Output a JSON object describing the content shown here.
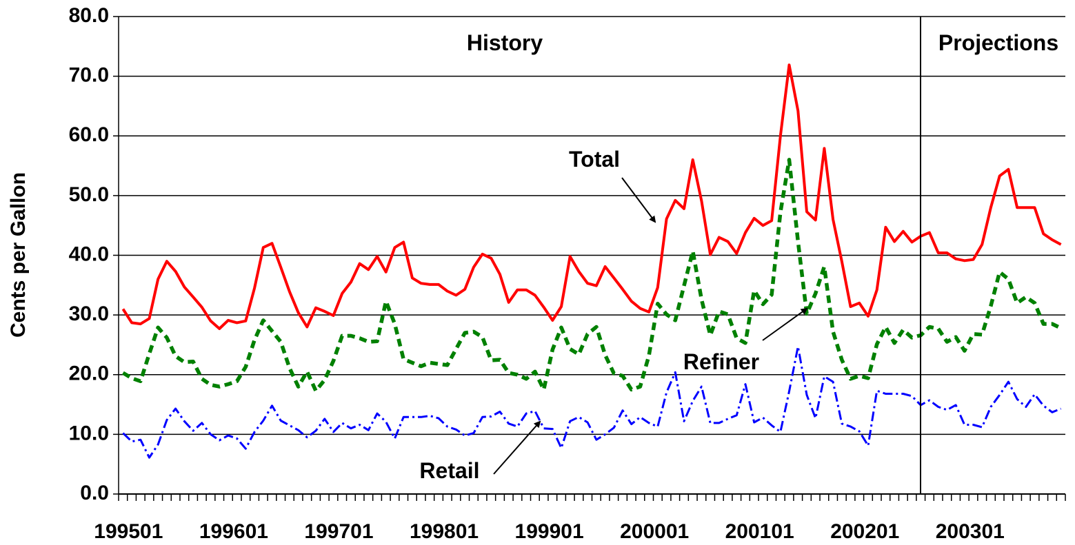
{
  "chart_data": {
    "type": "line",
    "y_label": "Cents per Gallon",
    "annotations": [
      "History",
      "Projections",
      "Total",
      "Refiner",
      "Retail"
    ],
    "categories": [
      "199501",
      null,
      null,
      null,
      null,
      null,
      null,
      null,
      null,
      null,
      null,
      null,
      "199601",
      null,
      null,
      null,
      null,
      null,
      null,
      null,
      null,
      null,
      null,
      null,
      "199701",
      null,
      null,
      null,
      null,
      null,
      null,
      null,
      null,
      null,
      null,
      null,
      "199801",
      null,
      null,
      null,
      null,
      null,
      null,
      null,
      null,
      null,
      null,
      null,
      "199901",
      null,
      null,
      null,
      null,
      null,
      null,
      null,
      null,
      null,
      null,
      null,
      "200001",
      null,
      null,
      null,
      null,
      null,
      null,
      null,
      null,
      null,
      null,
      null,
      "200101",
      null,
      null,
      null,
      null,
      null,
      null,
      null,
      null,
      null,
      null,
      null,
      "200201",
      null,
      null,
      null,
      null,
      null,
      null,
      null,
      null,
      null,
      null,
      null,
      "200301",
      null,
      null,
      null,
      null,
      null,
      null,
      null,
      null,
      null,
      null,
      null
    ],
    "series": [
      {
        "name": "Total",
        "color": "#ff0000",
        "values": [
          31,
          28.7,
          28.5,
          29.4,
          36,
          39,
          37.3,
          34.7,
          33,
          31.3,
          29,
          27.7,
          29.1,
          28.7,
          29,
          34.5,
          41.3,
          42,
          38,
          33.9,
          30.4,
          28,
          31.2,
          30.6,
          29.9,
          33.6,
          35.5,
          38.6,
          37.6,
          39.8,
          37.2,
          41.3,
          42.2,
          36.2,
          35.3,
          35.1,
          35.1,
          34,
          33.3,
          34.3,
          38,
          40.2,
          39.5,
          36.8,
          32.1,
          34.2,
          34.2,
          33.3,
          31.3,
          29.1,
          31.4,
          39.8,
          37.3,
          35.3,
          34.9,
          38.1,
          36.2,
          34.3,
          32.3,
          31.1,
          30.5,
          34.6,
          46.1,
          49.2,
          47.8,
          56,
          49.1,
          40.1,
          43,
          42.3,
          40.3,
          43.8,
          46.2,
          45,
          45.8,
          60,
          71.9,
          64.2,
          47.3,
          45.9,
          57.9,
          46,
          39,
          31.4,
          32,
          29.8,
          34.2,
          44.7,
          42.3,
          44,
          42.2,
          43.2,
          43.8,
          40.4,
          40.4,
          39.4,
          39.1,
          39.3,
          41.8,
          48,
          53.3,
          54.4,
          48,
          48,
          48,
          43.6,
          42.6,
          41.8
        ]
      },
      {
        "name": "Refiner",
        "color": "#008000",
        "values": [
          20.3,
          19.4,
          18.9,
          23.5,
          27.9,
          26.2,
          23.1,
          22.1,
          22.2,
          19.3,
          18.3,
          18,
          18.4,
          18.9,
          21.3,
          25.8,
          29.1,
          27.3,
          25.5,
          21.1,
          18,
          20.5,
          17.3,
          19.1,
          22.3,
          26.5,
          26.5,
          26.1,
          25.5,
          25.6,
          32.3,
          28.5,
          22.6,
          22,
          21.4,
          22,
          21.8,
          21.6,
          24.3,
          27,
          27.2,
          26.3,
          22.4,
          22.5,
          20.3,
          20,
          19.3,
          20.5,
          17.5,
          24.2,
          27.9,
          24.3,
          23.4,
          26.8,
          28,
          23.3,
          20.2,
          19.8,
          17.5,
          18,
          23.2,
          31.9,
          30.1,
          29.1,
          34.9,
          40.7,
          32.6,
          26.6,
          30.6,
          30.1,
          26.1,
          25.3,
          34.1,
          31.8,
          33.4,
          47.2,
          56,
          42.3,
          30.2,
          33.6,
          38.1,
          27.2,
          22.5,
          19.3,
          19.8,
          19.4,
          25.1,
          28,
          25.3,
          27.5,
          26.2,
          26.6,
          28,
          27.7,
          25.5,
          26.3,
          24,
          26.8,
          26.7,
          31.5,
          37.2,
          36,
          32,
          33,
          32,
          28.5,
          28.5,
          27.8
        ]
      },
      {
        "name": "Retail",
        "color": "#0000ff",
        "values": [
          10.2,
          8.8,
          9.1,
          6.1,
          8.3,
          12.4,
          14.3,
          12.2,
          10.6,
          11.9,
          10,
          9,
          9.8,
          9.3,
          7.6,
          10.4,
          12.3,
          14.8,
          12.3,
          11.5,
          10.7,
          9.5,
          10.6,
          12.6,
          10.4,
          11.9,
          11,
          11.6,
          10.7,
          13.5,
          12.1,
          9.3,
          12.9,
          12.9,
          12.9,
          13.1,
          12.7,
          11.3,
          10.8,
          9.8,
          10.2,
          12.9,
          13,
          13.8,
          11.8,
          11.3,
          13.5,
          13.9,
          11,
          10.9,
          7.7,
          12.2,
          12.9,
          12,
          9.1,
          10,
          11.1,
          14,
          11.7,
          12.9,
          11.9,
          11.3,
          17,
          20.4,
          12.2,
          15.6,
          18,
          11.9,
          11.9,
          12.6,
          13.2,
          18.4,
          12,
          12.8,
          11.5,
          10.4,
          17.2,
          24.7,
          16.6,
          12.7,
          19.7,
          18.8,
          11.8,
          11.3,
          10.5,
          8.1,
          17.3,
          16.8,
          16.8,
          16.8,
          16.4,
          14.9,
          15.7,
          14.6,
          14.1,
          14.9,
          11.6,
          11.6,
          11.2,
          14.6,
          16.6,
          18.8,
          15.9,
          14.6,
          16.7,
          14.8,
          13.7,
          14.3
        ]
      }
    ],
    "ylim": [
      0,
      80
    ],
    "yticks": [
      {
        "value": 0,
        "label": "0.0"
      },
      {
        "value": 10,
        "label": "10.0"
      },
      {
        "value": 20,
        "label": "20.0"
      },
      {
        "value": 30,
        "label": "30.0"
      },
      {
        "value": 40,
        "label": "40.0"
      },
      {
        "value": 50,
        "label": "50.0"
      },
      {
        "value": 60,
        "label": "60.0"
      },
      {
        "value": 70,
        "label": "70.0"
      },
      {
        "value": 80,
        "label": "80.0"
      }
    ],
    "grid": true
  }
}
